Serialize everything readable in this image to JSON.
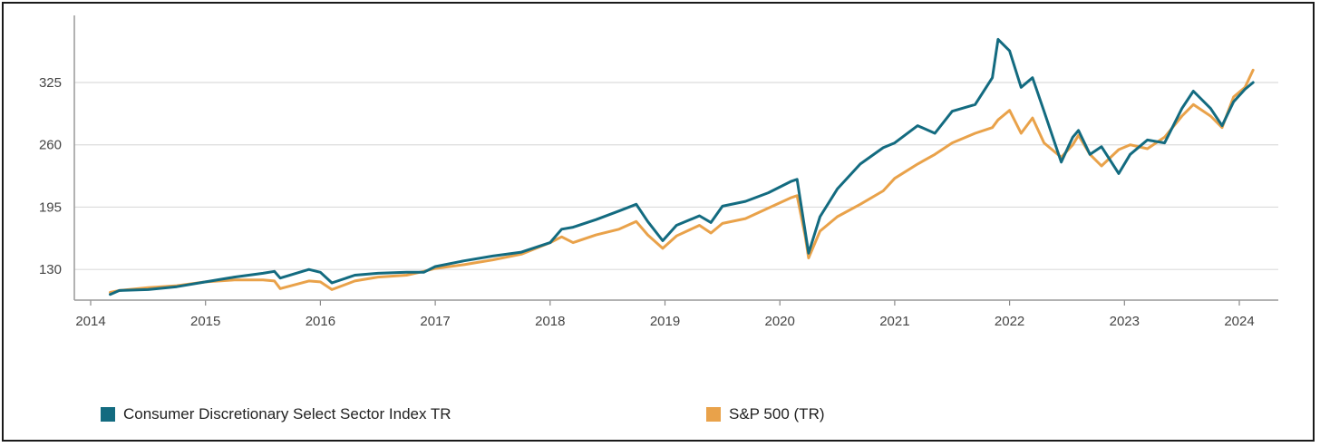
{
  "chart_data": {
    "type": "line",
    "title": "",
    "xlabel": "",
    "ylabel": "",
    "xlim": [
      2014.0,
      2024.25
    ],
    "ylim": [
      98,
      395
    ],
    "yticks": [
      130,
      195,
      260,
      325
    ],
    "xticks": [
      "2014",
      "2015",
      "2016",
      "2017",
      "2018",
      "2019",
      "2020",
      "2021",
      "2022",
      "2023",
      "2024"
    ],
    "grid": "horizontal",
    "legend_position": "bottom",
    "series": [
      {
        "name": "Consumer Discretionary Select Sector Index TR",
        "color": "#136b80",
        "points": [
          [
            2014.17,
            104
          ],
          [
            2014.25,
            108
          ],
          [
            2014.5,
            109
          ],
          [
            2014.75,
            112
          ],
          [
            2015.0,
            117
          ],
          [
            2015.25,
            122
          ],
          [
            2015.5,
            126
          ],
          [
            2015.6,
            128
          ],
          [
            2015.65,
            121
          ],
          [
            2015.9,
            130
          ],
          [
            2016.0,
            127
          ],
          [
            2016.1,
            116
          ],
          [
            2016.3,
            124
          ],
          [
            2016.5,
            126
          ],
          [
            2016.75,
            127
          ],
          [
            2016.9,
            127
          ],
          [
            2017.0,
            133
          ],
          [
            2017.25,
            139
          ],
          [
            2017.5,
            144
          ],
          [
            2017.75,
            148
          ],
          [
            2018.0,
            158
          ],
          [
            2018.1,
            172
          ],
          [
            2018.2,
            174
          ],
          [
            2018.4,
            182
          ],
          [
            2018.6,
            191
          ],
          [
            2018.75,
            198
          ],
          [
            2018.85,
            180
          ],
          [
            2018.98,
            160
          ],
          [
            2019.1,
            176
          ],
          [
            2019.3,
            186
          ],
          [
            2019.4,
            179
          ],
          [
            2019.5,
            196
          ],
          [
            2019.7,
            201
          ],
          [
            2019.9,
            210
          ],
          [
            2020.1,
            222
          ],
          [
            2020.15,
            224
          ],
          [
            2020.22,
            170
          ],
          [
            2020.25,
            147
          ],
          [
            2020.35,
            185
          ],
          [
            2020.5,
            214
          ],
          [
            2020.7,
            240
          ],
          [
            2020.9,
            257
          ],
          [
            2021.0,
            262
          ],
          [
            2021.2,
            280
          ],
          [
            2021.35,
            272
          ],
          [
            2021.5,
            295
          ],
          [
            2021.7,
            302
          ],
          [
            2021.85,
            330
          ],
          [
            2021.9,
            370
          ],
          [
            2022.0,
            358
          ],
          [
            2022.1,
            320
          ],
          [
            2022.2,
            330
          ],
          [
            2022.3,
            295
          ],
          [
            2022.45,
            242
          ],
          [
            2022.55,
            268
          ],
          [
            2022.6,
            275
          ],
          [
            2022.7,
            250
          ],
          [
            2022.8,
            258
          ],
          [
            2022.95,
            230
          ],
          [
            2023.05,
            250
          ],
          [
            2023.2,
            265
          ],
          [
            2023.35,
            262
          ],
          [
            2023.5,
            298
          ],
          [
            2023.6,
            316
          ],
          [
            2023.75,
            298
          ],
          [
            2023.85,
            280
          ],
          [
            2023.95,
            305
          ],
          [
            2024.05,
            318
          ],
          [
            2024.12,
            325
          ]
        ]
      },
      {
        "name": "S&P 500 (TR)",
        "color": "#e9a24a",
        "points": [
          [
            2014.17,
            106
          ],
          [
            2014.25,
            108
          ],
          [
            2014.5,
            111
          ],
          [
            2014.75,
            113
          ],
          [
            2015.0,
            117
          ],
          [
            2015.25,
            119
          ],
          [
            2015.5,
            119
          ],
          [
            2015.6,
            118
          ],
          [
            2015.65,
            110
          ],
          [
            2015.9,
            118
          ],
          [
            2016.0,
            117
          ],
          [
            2016.1,
            109
          ],
          [
            2016.3,
            118
          ],
          [
            2016.5,
            122
          ],
          [
            2016.75,
            124
          ],
          [
            2016.9,
            128
          ],
          [
            2017.0,
            131
          ],
          [
            2017.25,
            135
          ],
          [
            2017.5,
            140
          ],
          [
            2017.75,
            146
          ],
          [
            2018.0,
            158
          ],
          [
            2018.1,
            164
          ],
          [
            2018.2,
            158
          ],
          [
            2018.4,
            166
          ],
          [
            2018.6,
            172
          ],
          [
            2018.75,
            180
          ],
          [
            2018.85,
            166
          ],
          [
            2018.98,
            152
          ],
          [
            2019.1,
            165
          ],
          [
            2019.3,
            176
          ],
          [
            2019.4,
            168
          ],
          [
            2019.5,
            178
          ],
          [
            2019.7,
            183
          ],
          [
            2019.9,
            194
          ],
          [
            2020.1,
            205
          ],
          [
            2020.15,
            207
          ],
          [
            2020.22,
            165
          ],
          [
            2020.25,
            142
          ],
          [
            2020.35,
            170
          ],
          [
            2020.5,
            185
          ],
          [
            2020.7,
            198
          ],
          [
            2020.9,
            212
          ],
          [
            2021.0,
            225
          ],
          [
            2021.2,
            240
          ],
          [
            2021.35,
            250
          ],
          [
            2021.5,
            262
          ],
          [
            2021.7,
            272
          ],
          [
            2021.85,
            278
          ],
          [
            2021.9,
            286
          ],
          [
            2022.0,
            296
          ],
          [
            2022.1,
            272
          ],
          [
            2022.2,
            288
          ],
          [
            2022.3,
            262
          ],
          [
            2022.45,
            247
          ],
          [
            2022.55,
            260
          ],
          [
            2022.6,
            270
          ],
          [
            2022.7,
            250
          ],
          [
            2022.8,
            238
          ],
          [
            2022.95,
            255
          ],
          [
            2023.05,
            260
          ],
          [
            2023.2,
            256
          ],
          [
            2023.35,
            268
          ],
          [
            2023.5,
            290
          ],
          [
            2023.6,
            302
          ],
          [
            2023.75,
            290
          ],
          [
            2023.85,
            278
          ],
          [
            2023.95,
            310
          ],
          [
            2024.05,
            320
          ],
          [
            2024.12,
            338
          ]
        ]
      }
    ]
  }
}
